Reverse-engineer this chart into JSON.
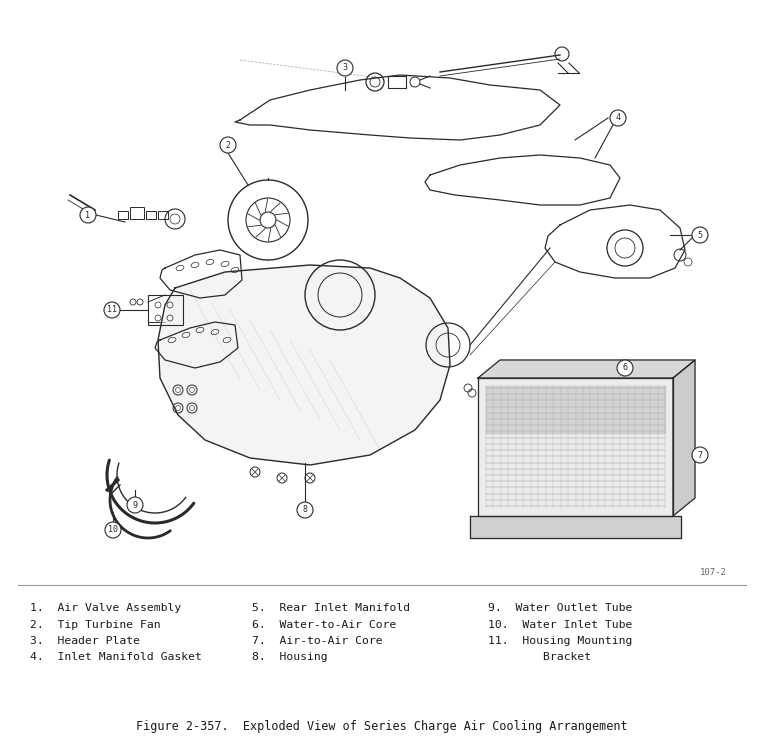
{
  "title": "Figure 2-357.  Exploded View of Series Charge Air Cooling Arrangement",
  "figure_label": "107-2",
  "background_color": "#ffffff",
  "col1_items": [
    "1.  Air Valve Assembly",
    "2.  Tip Turbine Fan",
    "3.  Header Plate",
    "4.  Inlet Manifold Gasket"
  ],
  "col2_items": [
    "5.  Rear Inlet Manifold",
    "6.  Water-to-Air Core",
    "7.  Air-to-Air Core",
    "8.  Housing"
  ],
  "col3_line1": "9.  Water Outlet Tube",
  "col3_line2": "10.  Water Inlet Tube",
  "col3_line3": "11.  Housing Mounting",
  "col3_line4": "        Bracket",
  "dk": "#2a2a2a",
  "md": "#666666",
  "lt": "#aaaaaa",
  "font_family": "monospace",
  "fig_w": 7.64,
  "fig_h": 7.5,
  "dpi": 100
}
